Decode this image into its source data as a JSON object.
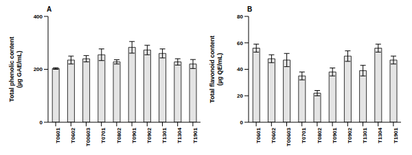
{
  "chart_data": [
    {
      "type": "bar",
      "title": "A",
      "y_label": [
        "Total phenolic content",
        "(µg GAE/mL)"
      ],
      "categories": [
        "T0601",
        "T0602",
        "T00603",
        "T0701",
        "T0802",
        "T0901",
        "T0902",
        "T1301",
        "T1304",
        "T1901"
      ],
      "values": [
        203,
        235,
        240,
        255,
        228,
        283,
        273,
        260,
        228,
        220
      ],
      "errors": [
        3,
        15,
        12,
        22,
        8,
        22,
        18,
        17,
        12,
        17
      ],
      "color": "#e4e4e4",
      "ylim": [
        0,
        400
      ],
      "yticks": [
        0,
        200,
        400
      ],
      "grid": false
    },
    {
      "type": "bar",
      "title": "B",
      "y_label": [
        "Total flavonoid content",
        "(µg QE/mL)"
      ],
      "categories": [
        "T0601",
        "T0602",
        "T00603",
        "T0701",
        "T0802",
        "T0901",
        "T0902",
        "T1301",
        "T1304",
        "T1901"
      ],
      "values": [
        56,
        48,
        47,
        35,
        22,
        38,
        50,
        39,
        56,
        47
      ],
      "errors": [
        3,
        3,
        5,
        3,
        2,
        3,
        4,
        4,
        3,
        3
      ],
      "color": "#e4e4e4",
      "ylim": [
        0,
        80
      ],
      "yticks": [
        0,
        20,
        40,
        60,
        80
      ],
      "grid": false
    }
  ]
}
